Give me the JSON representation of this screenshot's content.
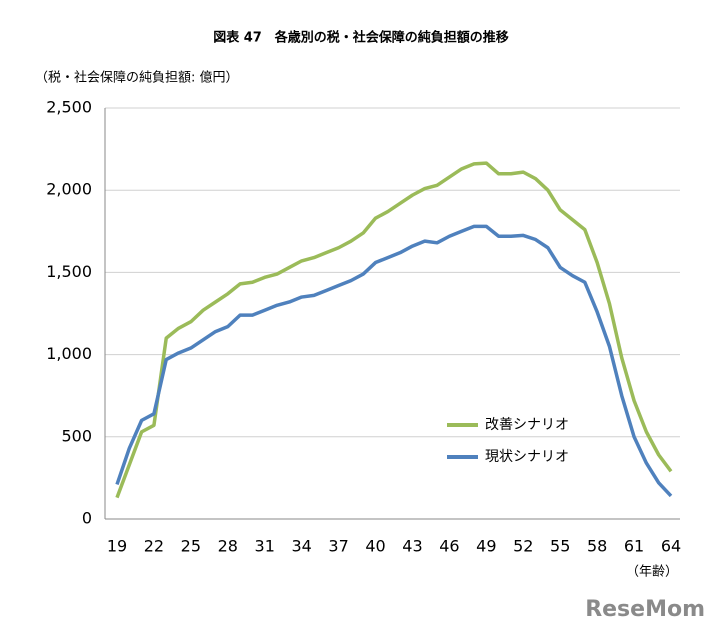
{
  "chart_data": {
    "type": "line",
    "title": "図表 47　各歳別の税・社会保障の純負担額の推移",
    "y_label": "（税・社会保障の純負担額: 億円）",
    "x_label": "（年齢）",
    "watermark": "ReseMom",
    "x": [
      19,
      20,
      21,
      22,
      23,
      24,
      25,
      26,
      27,
      28,
      29,
      30,
      31,
      32,
      33,
      34,
      35,
      36,
      37,
      38,
      39,
      40,
      41,
      42,
      43,
      44,
      45,
      46,
      47,
      48,
      49,
      50,
      51,
      52,
      53,
      54,
      55,
      56,
      57,
      58,
      59,
      60,
      61,
      62,
      63,
      64
    ],
    "xlim": [
      19,
      64
    ],
    "xticks": [
      19,
      22,
      25,
      28,
      31,
      34,
      37,
      40,
      43,
      46,
      49,
      52,
      55,
      58,
      61,
      64
    ],
    "ylim": [
      0,
      2500
    ],
    "yticks": [
      0,
      500,
      {
        "value": 1000,
        "label": "1,000"
      },
      {
        "value": 1500,
        "label": "1,500"
      },
      {
        "value": 2000,
        "label": "2,000"
      },
      {
        "value": 2500,
        "label": "2,500"
      }
    ],
    "grid": true,
    "series": [
      {
        "name": "改善シナリオ",
        "color": "#9bbb59",
        "values": [
          130,
          330,
          530,
          570,
          1100,
          1160,
          1200,
          1270,
          1320,
          1370,
          1430,
          1440,
          1470,
          1490,
          1530,
          1570,
          1590,
          1620,
          1650,
          1690,
          1740,
          1830,
          1870,
          1920,
          1970,
          2010,
          2030,
          2080,
          2130,
          2160,
          2165,
          2100,
          2100,
          2110,
          2070,
          2000,
          1880,
          1820,
          1760,
          1560,
          1310,
          980,
          720,
          530,
          390,
          290
        ]
      },
      {
        "name": "現状シナリオ",
        "color": "#4f81bd",
        "values": [
          210,
          430,
          600,
          640,
          970,
          1010,
          1040,
          1090,
          1140,
          1170,
          1240,
          1240,
          1270,
          1300,
          1320,
          1350,
          1360,
          1390,
          1420,
          1450,
          1490,
          1560,
          1590,
          1620,
          1660,
          1690,
          1680,
          1720,
          1750,
          1780,
          1780,
          1720,
          1720,
          1725,
          1700,
          1650,
          1530,
          1480,
          1440,
          1260,
          1050,
          750,
          500,
          340,
          220,
          140
        ]
      }
    ]
  }
}
